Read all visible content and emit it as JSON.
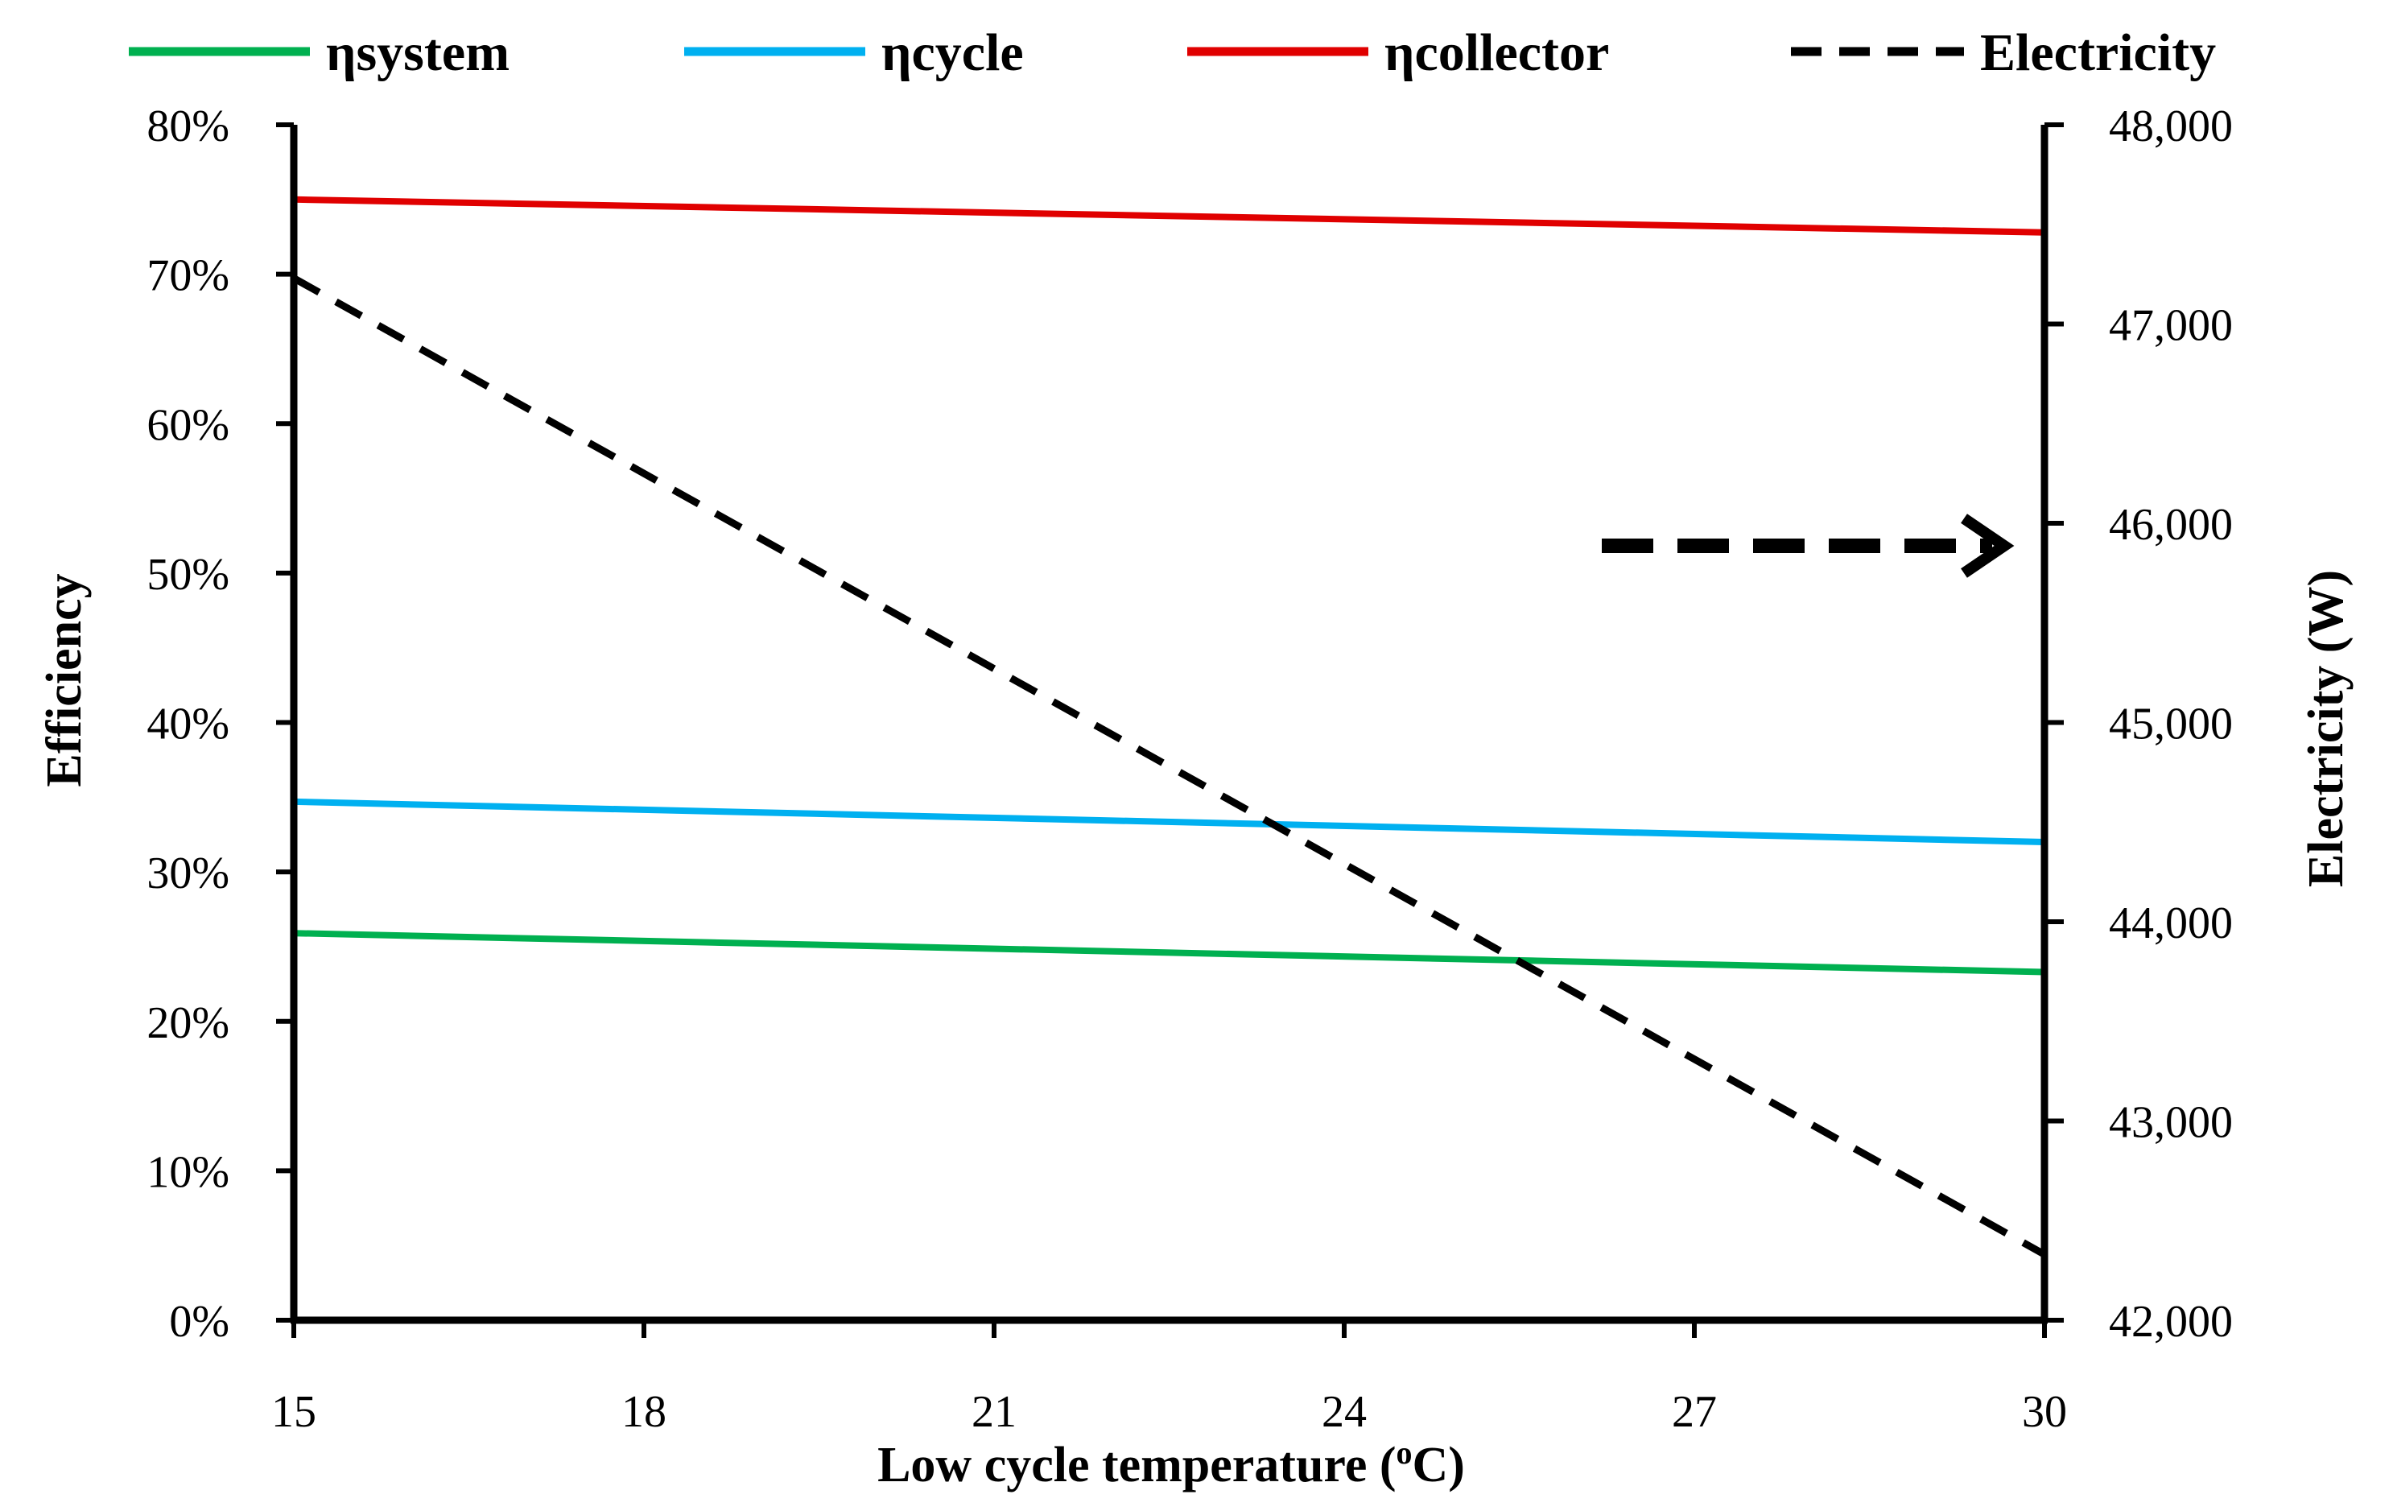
{
  "chart_data": {
    "type": "line",
    "x": [
      15,
      30
    ],
    "xlabel": "Low cycle temperature (",
    "xlabel_superscript": "o",
    "xlabel_suffix": "C)",
    "xlim": [
      15,
      30
    ],
    "xticks": [
      15,
      18,
      21,
      24,
      27,
      30
    ],
    "xtick_labels": [
      "15",
      "18",
      "21",
      "24",
      "27",
      "30"
    ],
    "ylabel": "Efficiency",
    "ylim": [
      0,
      80
    ],
    "yticks": [
      0,
      10,
      20,
      30,
      40,
      50,
      60,
      70,
      80
    ],
    "ytick_labels": [
      "0%",
      "10%",
      "20%",
      "30%",
      "40%",
      "50%",
      "60%",
      "70%",
      "80%"
    ],
    "y2label": "Electricity (W)",
    "y2lim": [
      42000,
      48000
    ],
    "y2ticks": [
      42000,
      43000,
      44000,
      45000,
      46000,
      47000,
      48000
    ],
    "y2tick_labels": [
      "42,000",
      "43,000",
      "44,000",
      "45,000",
      "46,000",
      "47,000",
      "48,000"
    ],
    "series": [
      {
        "name": "ηsystem",
        "axis": "left",
        "color": "#00b050",
        "dash": "solid",
        "values": [
          25.9,
          23.3
        ]
      },
      {
        "name": "ηcycle",
        "axis": "left",
        "color": "#00b0f0",
        "dash": "solid",
        "values": [
          34.7,
          32.0
        ]
      },
      {
        "name": "ηcollector",
        "axis": "left",
        "color": "#e00000",
        "dash": "solid",
        "values": [
          75.0,
          72.8
        ]
      },
      {
        "name": "Electricity",
        "axis": "right",
        "color": "#000000",
        "dash": "dashed",
        "values": [
          47230,
          42330
        ]
      }
    ],
    "annotation": {
      "type": "arrow",
      "points_to": "right-axis",
      "style": "dashed"
    },
    "legend_position": "top",
    "grid": false
  }
}
